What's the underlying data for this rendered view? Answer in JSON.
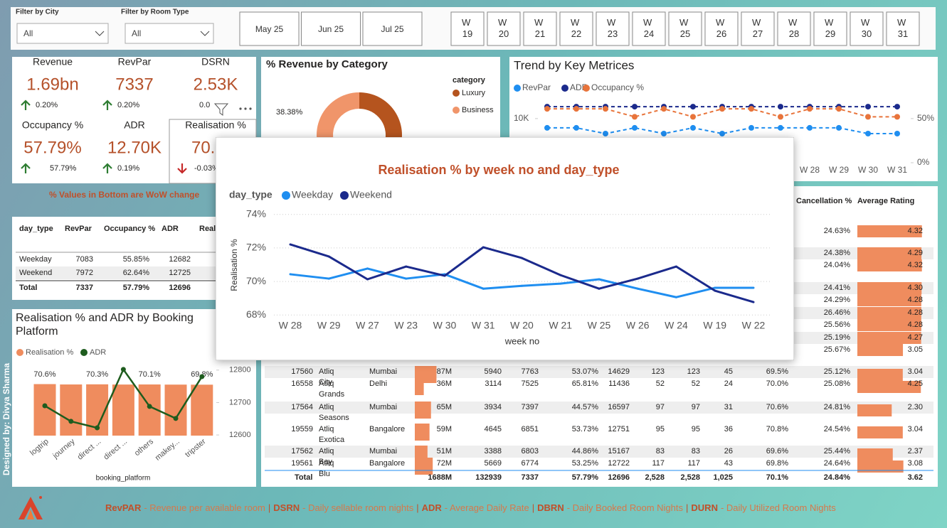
{
  "filters": {
    "city": {
      "label": "Filter by City",
      "value": "All"
    },
    "room_type": {
      "label": "Filter by Room Type",
      "value": "All"
    },
    "months": [
      "May 25",
      "Jun 25",
      "Jul 25"
    ],
    "weeks": [
      "W 19",
      "W 20",
      "W 21",
      "W 22",
      "W 23",
      "W 24",
      "W 25",
      "W 26",
      "W 27",
      "W 28",
      "W 29",
      "W 30",
      "W 31"
    ]
  },
  "kpis": [
    {
      "label": "Revenue",
      "value": "1.69bn",
      "change": "0.20%",
      "trend": "up"
    },
    {
      "label": "RevPar",
      "value": "7337",
      "change": "0.20%",
      "trend": "up"
    },
    {
      "label": "DSRN",
      "value": "2.53K",
      "change": "0.0"
    },
    {
      "label": "Occupancy %",
      "value": "57.79%",
      "change": "57.79%",
      "trend": "up"
    },
    {
      "label": "ADR",
      "value": "12.70K",
      "change": "0.19%",
      "trend": "up"
    },
    {
      "label": "Realisation %",
      "value": "70.1%",
      "change": "-0.03%",
      "trend": "down"
    }
  ],
  "wow_note": "% Values in Bottom are WoW change",
  "day_type_table": {
    "headers": [
      "day_type",
      "RevPar",
      "Occupancy %",
      "ADR",
      "Realisation %"
    ],
    "rows": [
      [
        "Weekday",
        "7083",
        "55.85%",
        "12682"
      ],
      [
        "Weekend",
        "7972",
        "62.64%",
        "12725"
      ]
    ],
    "total": [
      "Total",
      "7337",
      "57.79%",
      "12696"
    ]
  },
  "hotel_table": {
    "headers": [
      "Cancellation %",
      "Average Rating"
    ],
    "partial_rows": [
      [
        "24.63%",
        "4.32"
      ],
      [
        "24.38%",
        "4.29"
      ],
      [
        "24.04%",
        "4.32"
      ],
      [
        "24.41%",
        "4.30"
      ],
      [
        "24.29%",
        "4.28"
      ],
      [
        "26.46%",
        "4.28"
      ],
      [
        "25.56%",
        "4.28"
      ],
      [
        "25.19%",
        "4.27"
      ],
      [
        "25.67%",
        "3.05"
      ]
    ],
    "rows": [
      [
        "17560",
        "Atliq City",
        "Mumbai",
        "87M",
        "5940",
        "7763",
        "53.07%",
        "14629",
        "123",
        "123",
        "45",
        "69.5%",
        "25.12%",
        "3.04"
      ],
      [
        "16558",
        "Atliq Grands",
        "Delhi",
        "36M",
        "3114",
        "7525",
        "65.81%",
        "11436",
        "52",
        "52",
        "24",
        "70.0%",
        "25.08%",
        "4.25"
      ],
      [
        "17564",
        "Atliq Seasons",
        "Mumbai",
        "65M",
        "3934",
        "7397",
        "44.57%",
        "16597",
        "97",
        "97",
        "31",
        "70.6%",
        "24.81%",
        "2.30"
      ],
      [
        "19559",
        "Atliq Exotica",
        "Bangalore",
        "59M",
        "4645",
        "6851",
        "53.73%",
        "12751",
        "95",
        "95",
        "36",
        "70.8%",
        "24.54%",
        "3.04"
      ],
      [
        "17562",
        "Atliq Bay",
        "Mumbai",
        "51M",
        "3388",
        "6803",
        "44.86%",
        "15167",
        "83",
        "83",
        "26",
        "69.6%",
        "25.44%",
        "2.37"
      ],
      [
        "19561",
        "Atliq Blu",
        "Bangalore",
        "72M",
        "5669",
        "6774",
        "53.25%",
        "12722",
        "117",
        "117",
        "43",
        "69.8%",
        "24.64%",
        "3.08"
      ]
    ],
    "total": {
      "label": "Total",
      "cells": [
        "1688M",
        "132939",
        "7337",
        "57.79%",
        "12696",
        "2,528",
        "2,528",
        "1,025",
        "70.1%",
        "24.84%",
        "3.62"
      ]
    }
  },
  "credit": "Designed by: Divya Sharma",
  "footer": {
    "separator": "|",
    "items": [
      {
        "abbr": "RevPAR",
        "text": "- Revenue per available room"
      },
      {
        "abbr": "DSRN",
        "text": "- Daily sellable room nights"
      },
      {
        "abbr": "ADR",
        "text": "- Average Daily Rate"
      },
      {
        "abbr": "DBRN",
        "text": "- Daily Booked Room Nights"
      },
      {
        "abbr": "DURN",
        "text": "- Daily Utilized Room Nights"
      }
    ]
  },
  "chart_data": [
    {
      "type": "pie",
      "title": "% Revenue by Category",
      "legend_title": "category",
      "categories": [
        "Luxury",
        "Business"
      ],
      "values": [
        61.62,
        38.38
      ],
      "value_labels": [
        null,
        "38.38%"
      ],
      "colors": [
        "#b5541e",
        "#f0956a"
      ],
      "donut": true
    },
    {
      "type": "line",
      "title": "Trend by Key Metrices",
      "categories": [
        "W 19",
        "W 20",
        "W 21",
        "W 22",
        "W 23",
        "W 24",
        "W 25",
        "W 26",
        "W 27",
        "W 28",
        "W 29",
        "W 30",
        "W 31"
      ],
      "series": [
        {
          "name": "RevPar",
          "color": "#1f8ef0",
          "values": [
            7900,
            7900,
            6600,
            7900,
            6600,
            7900,
            6600,
            7900,
            7900,
            7900,
            7900,
            6600,
            6600
          ]
        },
        {
          "name": "ADR",
          "color": "#1b2a8c",
          "values": [
            12700,
            12700,
            12700,
            12700,
            12700,
            12700,
            12700,
            12700,
            12700,
            12700,
            12700,
            12700,
            12700
          ]
        },
        {
          "name": "Occupancy %",
          "color": "#e8743b",
          "axis": "y2",
          "values": [
            61,
            61,
            61,
            52,
            61,
            52,
            61,
            61,
            52,
            61,
            61,
            52,
            52
          ]
        }
      ],
      "ylim": [
        0,
        14000
      ],
      "yticks": [
        {
          "value": 10000,
          "label": "10K"
        }
      ],
      "y2lim": [
        0,
        70
      ],
      "y2ticks": [
        {
          "value": 50,
          "label": "50%"
        },
        {
          "value": 0,
          "label": "0%"
        }
      ],
      "dashed": true
    },
    {
      "type": "bar",
      "title": "Realisation % and ADR by Booking Platform",
      "x_label": "booking_platform",
      "categories": [
        "logtrip",
        "journey",
        "direct ...",
        "direct ...",
        "others",
        "makey...",
        "tripster"
      ],
      "series": [
        {
          "name": "Realisation %",
          "type": "bar",
          "color": "#ef8c5e",
          "values": [
            70.6,
            70.1,
            70.3,
            70.0,
            70.1,
            69.9,
            69.8
          ],
          "value_labels": [
            "70.6%",
            null,
            "70.3%",
            null,
            "70.1%",
            null,
            "69.8%"
          ]
        },
        {
          "name": "ADR",
          "type": "line",
          "color": "#1e5c1e",
          "axis": "y2",
          "values": [
            12690,
            12642,
            12622,
            12802,
            12688,
            12651,
            12780
          ]
        }
      ],
      "ylim": [
        0,
        112
      ],
      "y2lim": [
        12598,
        12850
      ],
      "y2ticks": [
        12800,
        12700,
        12600
      ]
    },
    {
      "type": "line",
      "title": "Realisation % by week no and day_type",
      "legend_title": "day_type",
      "x_label": "week no",
      "y_label": "Realisation %",
      "categories": [
        "W 28",
        "W 29",
        "W 27",
        "W 23",
        "W 30",
        "W 31",
        "W 20",
        "W 21",
        "W 25",
        "W 26",
        "W 24",
        "W 19",
        "W 22"
      ],
      "series": [
        {
          "name": "Weekday",
          "color": "#1f8ef0",
          "values": [
            70.43,
            70.17,
            70.77,
            70.17,
            70.43,
            69.57,
            69.74,
            69.87,
            70.13,
            69.57,
            69.06,
            69.62,
            69.62
          ]
        },
        {
          "name": "Weekend",
          "color": "#1b2a8c",
          "values": [
            72.21,
            71.49,
            70.13,
            70.89,
            70.34,
            72.04,
            71.4,
            70.38,
            69.57,
            70.17,
            70.89,
            69.45,
            68.77
          ]
        }
      ],
      "ylim": [
        67.5,
        74.5
      ],
      "yticks": [
        {
          "value": 68,
          "label": "68%"
        },
        {
          "value": 70,
          "label": "70%"
        },
        {
          "value": 72,
          "label": "72%"
        },
        {
          "value": 74,
          "label": "74%"
        }
      ],
      "grid": true
    }
  ]
}
